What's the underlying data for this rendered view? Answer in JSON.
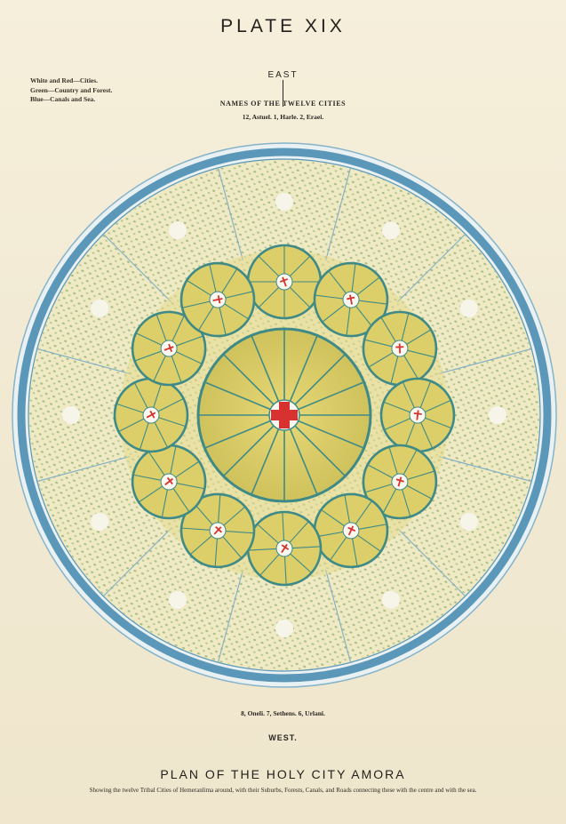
{
  "plate": {
    "title": "PLATE XIX",
    "legend": [
      "White and Red—Cities.",
      "Green—Country and Forest.",
      "Blue—Canals and Sea."
    ],
    "east_label": "EAST",
    "names_header": "NAMES OF THE TWELVE CITIES",
    "east_cities": "12, Astuel.   1, Harle.   2, Eraei.",
    "west_cities": "8, Oneli.   7, Sethens.   6, Urlani.",
    "west_label": "WEST.",
    "caption": "PLAN OF THE HOLY CITY AMORA",
    "subcaption": "Showing the twelve Tribal Cities of Hemeranlima around, with their Suburbs, Forests, Canals, and Roads connecting these with the centre and with the sea."
  },
  "colors": {
    "sea": "#5b97b8",
    "country": "#efe9c4",
    "forest": "#8fb070",
    "city_fill": "#dccf6a",
    "city_line": "#3f8a86",
    "cross": "#d7322f"
  }
}
